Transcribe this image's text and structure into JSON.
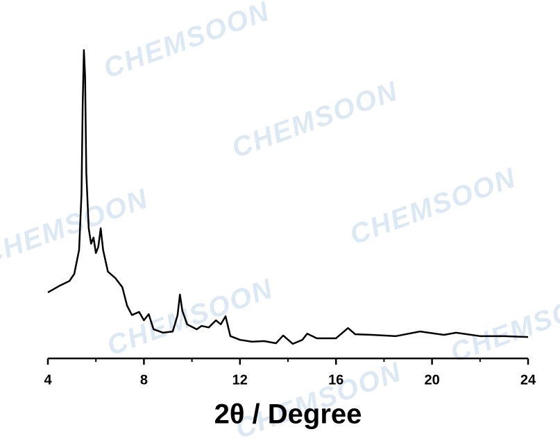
{
  "chart_data": {
    "type": "line",
    "xlabel": "2θ / Degree",
    "watermark": "CHEMSOON",
    "color": "#000000",
    "x": [
      4.0,
      4.5,
      4.9,
      5.1,
      5.3,
      5.4,
      5.45,
      5.5,
      5.55,
      5.6,
      5.7,
      5.8,
      5.9,
      6.0,
      6.1,
      6.2,
      6.3,
      6.5,
      6.8,
      7.1,
      7.3,
      7.5,
      7.8,
      8.0,
      8.2,
      8.4,
      8.8,
      9.2,
      9.4,
      9.5,
      9.6,
      9.8,
      10.2,
      10.4,
      10.7,
      11.0,
      11.2,
      11.4,
      11.6,
      12.0,
      12.5,
      13.0,
      13.5,
      13.8,
      14.2,
      14.6,
      14.8,
      15.2,
      16.0,
      16.5,
      16.8,
      17.5,
      18.5,
      19.5,
      20.5,
      21.0,
      22.0,
      23.0,
      24.0
    ],
    "values": [
      21.3,
      23.5,
      25.0,
      27.3,
      35.0,
      53.0,
      82.0,
      99.5,
      91.0,
      60.0,
      42.0,
      37.0,
      39.0,
      34.0,
      36.0,
      42.0,
      35.0,
      28.0,
      26.0,
      23.0,
      17.0,
      14.0,
      15.0,
      12.3,
      14.3,
      9.4,
      8.3,
      8.7,
      13.9,
      20.6,
      15.4,
      11.0,
      9.4,
      10.5,
      10.0,
      12.3,
      11.0,
      13.6,
      7.2,
      6.0,
      5.4,
      5.6,
      4.9,
      7.4,
      4.7,
      6.0,
      8.0,
      6.5,
      6.5,
      9.8,
      7.8,
      7.6,
      7.2,
      8.7,
      7.6,
      8.3,
      7.2,
      7.2,
      6.9
    ],
    "xlim": [
      4,
      24
    ],
    "ylim": [
      0,
      100
    ],
    "xticks": [
      4,
      8,
      12,
      16,
      20,
      24
    ],
    "xminorticks": [
      6,
      10,
      14,
      18,
      22
    ]
  }
}
